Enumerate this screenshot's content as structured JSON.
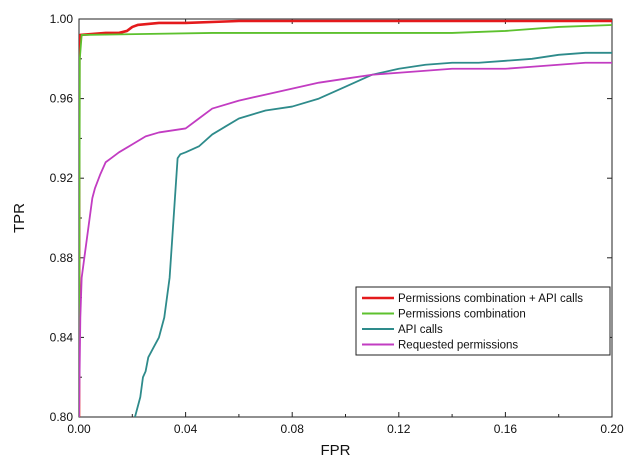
{
  "chart_data": {
    "type": "line",
    "xlabel": "FPR",
    "ylabel": "TPR",
    "xlim": [
      0.0,
      0.2
    ],
    "ylim": [
      0.8,
      1.0
    ],
    "x_ticks": [
      "0.00",
      "0.04",
      "0.08",
      "0.12",
      "0.16",
      "0.20"
    ],
    "y_ticks": [
      "0.80",
      "0.84",
      "0.88",
      "0.92",
      "0.96",
      "1.00"
    ],
    "grid": false,
    "legend_position": "bottom-right",
    "series": [
      {
        "name": "Permissions combination + API calls",
        "color": "#e41a1c",
        "x": [
          0.0,
          0.0001,
          0.0005,
          0.01,
          0.015,
          0.018,
          0.02,
          0.022,
          0.03,
          0.04,
          0.06,
          0.1,
          0.15,
          0.2
        ],
        "y": [
          0.8,
          0.98,
          0.992,
          0.993,
          0.993,
          0.994,
          0.996,
          0.997,
          0.998,
          0.998,
          0.999,
          0.999,
          0.999,
          0.999
        ]
      },
      {
        "name": "Permissions combination",
        "color": "#5dc12e",
        "x": [
          0.0,
          0.0003,
          0.001,
          0.05,
          0.1,
          0.14,
          0.16,
          0.18,
          0.2
        ],
        "y": [
          0.8,
          0.98,
          0.992,
          0.993,
          0.993,
          0.993,
          0.994,
          0.996,
          0.997
        ]
      },
      {
        "name": "API calls",
        "color": "#2e8b8b",
        "x": [
          0.021,
          0.023,
          0.024,
          0.025,
          0.026,
          0.028,
          0.03,
          0.032,
          0.034,
          0.035,
          0.036,
          0.037,
          0.038,
          0.04,
          0.045,
          0.05,
          0.055,
          0.06,
          0.065,
          0.07,
          0.08,
          0.09,
          0.1,
          0.11,
          0.12,
          0.13,
          0.14,
          0.15,
          0.16,
          0.17,
          0.18,
          0.19,
          0.2
        ],
        "y": [
          0.8,
          0.81,
          0.82,
          0.823,
          0.83,
          0.835,
          0.84,
          0.85,
          0.87,
          0.89,
          0.91,
          0.93,
          0.932,
          0.933,
          0.936,
          0.942,
          0.946,
          0.95,
          0.952,
          0.954,
          0.956,
          0.96,
          0.966,
          0.972,
          0.975,
          0.977,
          0.978,
          0.978,
          0.979,
          0.98,
          0.982,
          0.983,
          0.983
        ]
      },
      {
        "name": "Requested permissions",
        "color": "#c23cc2",
        "x": [
          0.0,
          0.0005,
          0.001,
          0.002,
          0.003,
          0.004,
          0.005,
          0.006,
          0.008,
          0.01,
          0.012,
          0.015,
          0.02,
          0.025,
          0.03,
          0.035,
          0.04,
          0.045,
          0.05,
          0.06,
          0.07,
          0.08,
          0.09,
          0.1,
          0.11,
          0.12,
          0.13,
          0.14,
          0.15,
          0.16,
          0.17,
          0.18,
          0.19,
          0.2
        ],
        "y": [
          0.8,
          0.85,
          0.87,
          0.88,
          0.89,
          0.9,
          0.91,
          0.915,
          0.922,
          0.928,
          0.93,
          0.933,
          0.937,
          0.941,
          0.943,
          0.944,
          0.945,
          0.95,
          0.955,
          0.959,
          0.962,
          0.965,
          0.968,
          0.97,
          0.972,
          0.973,
          0.974,
          0.975,
          0.975,
          0.975,
          0.976,
          0.977,
          0.978,
          0.978
        ]
      }
    ]
  }
}
